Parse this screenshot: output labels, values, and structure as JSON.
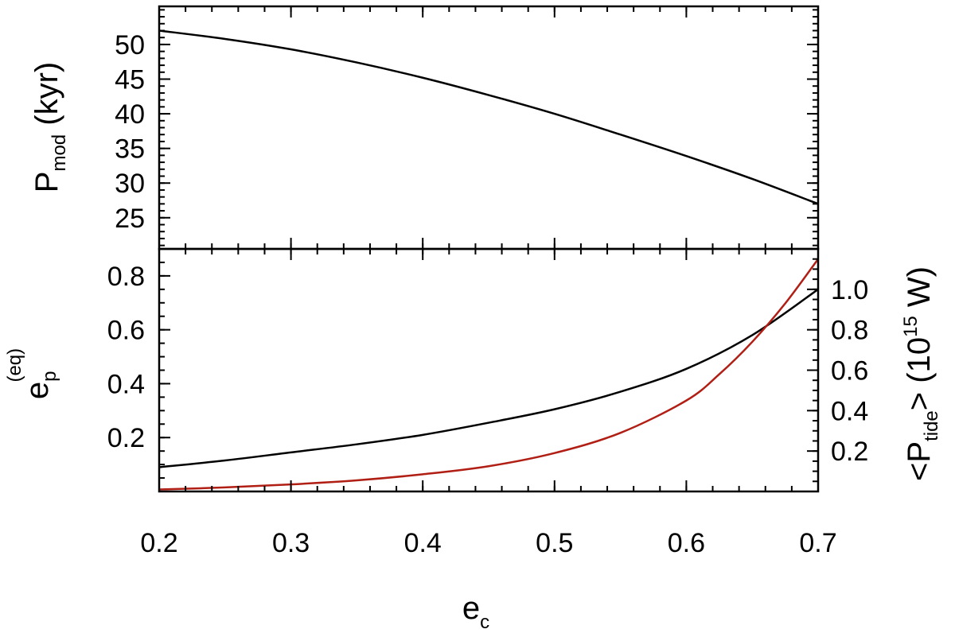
{
  "chart_data": [
    {
      "type": "line",
      "panel": "top",
      "xlim": [
        0.2,
        0.7
      ],
      "ylim": [
        20.5,
        55.5
      ],
      "yticks": [
        25,
        30,
        35,
        40,
        45,
        50
      ],
      "ylabel": {
        "main": "P",
        "sub": "mod",
        "rest": " (kyr)"
      },
      "series": [
        {
          "color": "#000000",
          "x": [
            0.2,
            0.25,
            0.3,
            0.35,
            0.4,
            0.45,
            0.5,
            0.55,
            0.6,
            0.65,
            0.7
          ],
          "y": [
            52.0,
            50.8,
            49.3,
            47.4,
            45.2,
            42.7,
            40.0,
            37.0,
            33.9,
            30.6,
            27.0
          ]
        }
      ]
    },
    {
      "type": "line",
      "panel": "bottom",
      "xlim": [
        0.2,
        0.7
      ],
      "xticks": [
        0.2,
        0.3,
        0.4,
        0.5,
        0.6,
        0.7
      ],
      "xtick_labels": [
        "0.2",
        "0.3",
        "0.4",
        "0.5",
        "0.6",
        "0.7"
      ],
      "xlabel": {
        "main": "e",
        "sub": "c"
      },
      "ylim": [
        0.0,
        0.9
      ],
      "yticks": [
        0.2,
        0.4,
        0.6,
        0.8
      ],
      "ytick_labels": [
        "0.2",
        "0.4",
        "0.6",
        "0.8"
      ],
      "ylabel": {
        "main": "e",
        "sub": "p",
        "sup": "(eq)"
      },
      "y2lim": [
        0.0,
        1.2
      ],
      "y2ticks": [
        0.2,
        0.4,
        0.6,
        0.8,
        1.0
      ],
      "y2tick_labels": [
        "0.2",
        "0.4",
        "0.6",
        "0.8",
        "1.0"
      ],
      "y2label": {
        "pre": "<P",
        "sub": "tide",
        "mid": "> (10",
        "sup": "15",
        "post": " W)"
      },
      "series": [
        {
          "color": "#000000",
          "axis": "left",
          "x": [
            0.2,
            0.25,
            0.3,
            0.35,
            0.4,
            0.45,
            0.5,
            0.55,
            0.6,
            0.65,
            0.7
          ],
          "y": [
            0.09,
            0.115,
            0.145,
            0.175,
            0.21,
            0.255,
            0.305,
            0.37,
            0.455,
            0.58,
            0.75
          ]
        },
        {
          "color": "#b01e14",
          "axis": "right",
          "x": [
            0.2,
            0.25,
            0.3,
            0.35,
            0.4,
            0.45,
            0.5,
            0.55,
            0.6,
            0.625,
            0.65,
            0.675,
            0.7
          ],
          "y": [
            0.01,
            0.02,
            0.035,
            0.055,
            0.085,
            0.125,
            0.19,
            0.29,
            0.45,
            0.58,
            0.74,
            0.93,
            1.15
          ]
        }
      ]
    }
  ]
}
